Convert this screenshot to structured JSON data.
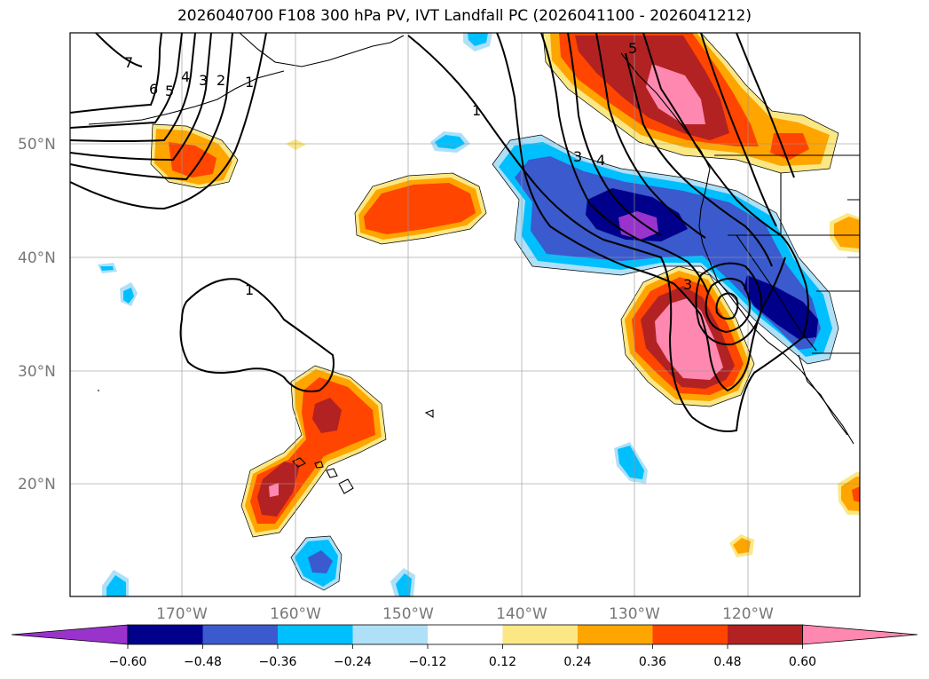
{
  "title": "2026040700 F108 300 hPa PV, IVT Landfall PC (2026041100 - 2026041212)",
  "latitude_labels": [
    "50°N",
    "40°N",
    "30°N",
    "20°N"
  ],
  "longitude_labels": [
    "170°W",
    "160°W",
    "150°W",
    "140°W",
    "130°W",
    "120°W"
  ],
  "colorbar": {
    "ticks": [
      "−0.60",
      "−0.48",
      "−0.36",
      "−0.24",
      "−0.12",
      "0.12",
      "0.24",
      "0.36",
      "0.48",
      "0.60"
    ],
    "colors": [
      "#9933cc",
      "#00008b",
      "#3a5acd",
      "#00bfff",
      "#aee0f7",
      "#ffffff",
      "#fbe884",
      "#ffa500",
      "#ff4500",
      "#b22222",
      "#ff88b0"
    ]
  },
  "contour_labels": [
    "7",
    "6",
    "5",
    "4",
    "3",
    "2",
    "1",
    "1",
    "3",
    "4",
    "5",
    "1",
    "3"
  ],
  "colors": {
    "pink": "#ff88b0",
    "firebrick": "#b22222",
    "orangered": "#ff4500",
    "orange": "#ffa500",
    "pale_yellow": "#fbe884",
    "purple": "#9933cc",
    "navy": "#00008b",
    "royal_blue": "#3a5acd",
    "sky_blue": "#00bfff",
    "light_blue": "#aee0f7"
  }
}
